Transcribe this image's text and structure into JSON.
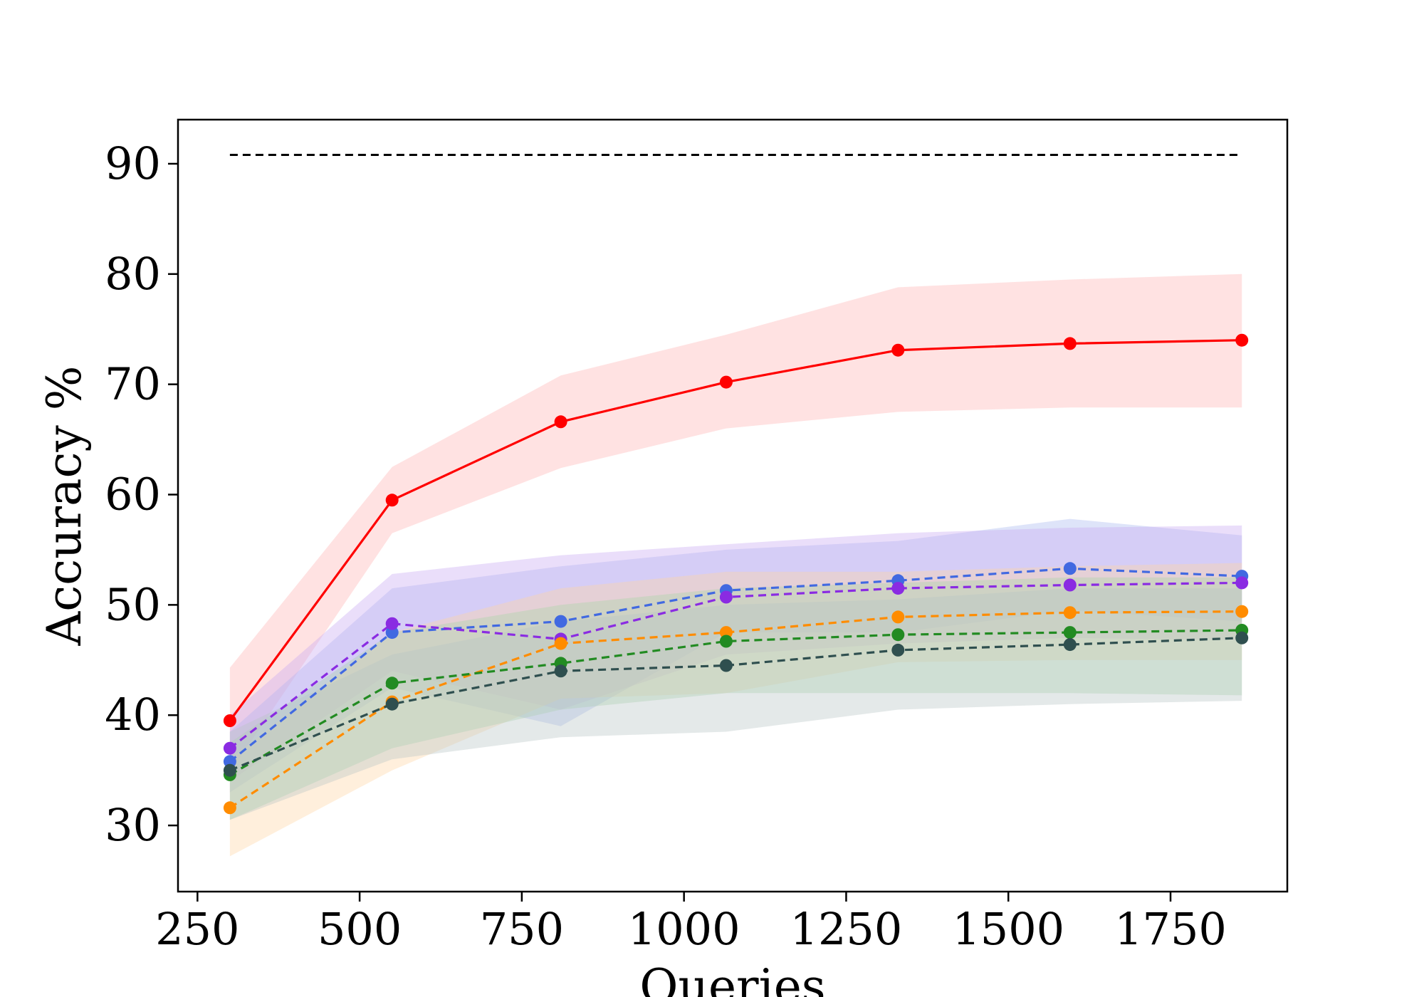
{
  "chart_data": {
    "type": "line",
    "title": "",
    "xlabel": "Queries",
    "ylabel": "Accuracy %",
    "xlim": [
      220,
      1930
    ],
    "ylim": [
      24,
      94
    ],
    "xticks": [
      250,
      500,
      750,
      1000,
      1250,
      1500,
      1750
    ],
    "xtick_labels": [
      "250",
      "500",
      "750",
      "1000",
      "1250",
      "1500",
      "1750"
    ],
    "yticks": [
      30,
      40,
      50,
      60,
      70,
      80,
      90
    ],
    "ytick_labels": [
      "30",
      "40",
      "50",
      "60",
      "70",
      "80",
      "90"
    ],
    "grid": false,
    "legend": "none",
    "x": [
      300,
      550,
      810,
      1065,
      1330,
      1595,
      1860
    ],
    "reference_line": {
      "y": 90.8,
      "x_start": 300,
      "x_end": 1860,
      "color": "#000000",
      "style": "dashed"
    },
    "series": [
      {
        "color": "#ff0000",
        "band_color": "#ffb3b3",
        "style": "solid",
        "values": [
          39.5,
          59.5,
          66.6,
          70.2,
          73.1,
          73.7,
          74.0
        ],
        "lower": [
          34.8,
          56.5,
          62.4,
          66.0,
          67.5,
          67.9,
          67.9
        ],
        "upper": [
          44.3,
          62.5,
          70.8,
          74.5,
          78.8,
          79.5,
          80.0
        ]
      },
      {
        "color": "#4169e1",
        "band_color": "#a7b9f0",
        "style": "dashed",
        "values": [
          35.8,
          47.5,
          48.5,
          51.3,
          52.2,
          53.3,
          52.6
        ],
        "lower": [
          33.0,
          42.5,
          39.0,
          47.5,
          47.5,
          49.5,
          48.5
        ],
        "upper": [
          38.5,
          51.5,
          53.5,
          55.0,
          55.8,
          57.8,
          56.3
        ]
      },
      {
        "color": "#8a2be2",
        "band_color": "#c8a8f2",
        "style": "dashed",
        "values": [
          37.0,
          48.3,
          46.9,
          50.7,
          51.5,
          51.8,
          52.0
        ],
        "lower": [
          34.0,
          44.0,
          40.5,
          45.5,
          46.5,
          47.0,
          46.8
        ],
        "upper": [
          40.0,
          52.8,
          54.5,
          55.5,
          56.5,
          57.0,
          57.2
        ]
      },
      {
        "color": "#ff8c00",
        "band_color": "#ffd5a3",
        "style": "dashed",
        "values": [
          31.6,
          41.2,
          46.5,
          47.5,
          48.9,
          49.3,
          49.4
        ],
        "lower": [
          27.2,
          35.0,
          41.5,
          42.0,
          44.8,
          45.0,
          45.0
        ],
        "upper": [
          36.0,
          47.5,
          51.5,
          53.0,
          53.0,
          53.5,
          53.8
        ]
      },
      {
        "color": "#228b22",
        "band_color": "#a8d5a8",
        "style": "dashed",
        "values": [
          34.6,
          42.9,
          44.7,
          46.7,
          47.3,
          47.5,
          47.7
        ],
        "lower": [
          30.5,
          37.0,
          40.5,
          42.0,
          42.0,
          42.0,
          41.8
        ],
        "upper": [
          37.5,
          47.5,
          50.0,
          51.5,
          52.0,
          52.5,
          52.5
        ]
      },
      {
        "color": "#2f4f4f",
        "band_color": "#b8c4c4",
        "style": "dashed",
        "values": [
          35.0,
          41.0,
          44.0,
          44.5,
          45.9,
          46.4,
          47.0
        ],
        "lower": [
          30.5,
          36.0,
          38.0,
          38.5,
          40.5,
          41.0,
          41.3
        ],
        "upper": [
          38.5,
          45.5,
          48.5,
          50.0,
          50.5,
          51.5,
          51.5
        ]
      }
    ]
  }
}
